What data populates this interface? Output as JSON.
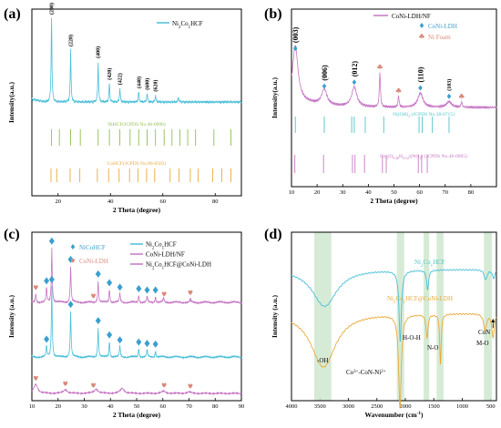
{
  "colors": {
    "blue": "#4bbfd8",
    "pink": "#c777c4",
    "orange": "#e8a93a",
    "green": "#8fbf4b",
    "diamond": "#3a9fd0",
    "heart": "#d9897b",
    "cyan": "#4dc3c9",
    "band": "#cfe8cf"
  },
  "chart_data": [
    {
      "panel": "(a)",
      "type": "line",
      "xlabel": "2 Theta (degree)",
      "ylabel": "Intensity(a.u.)",
      "xlim": [
        10,
        90
      ],
      "xticks": [
        "20",
        "40",
        "60",
        "80"
      ],
      "legend": "Ni2Co1HCF",
      "legend_main": "Ni",
      "legend_sub1": "2",
      "legend_mid": "Co",
      "legend_sub2": "1",
      "legend_tail": "HCF",
      "series_color": "blue",
      "baseline": 0.2,
      "peaks": [
        {
          "x": 17.5,
          "h": 1.0,
          "hkl": "(200)"
        },
        {
          "x": 24.8,
          "h": 0.62,
          "hkl": "(220)"
        },
        {
          "x": 35.3,
          "h": 0.48,
          "hkl": "(400)"
        },
        {
          "x": 39.6,
          "h": 0.22,
          "hkl": "(420)"
        },
        {
          "x": 43.6,
          "h": 0.16,
          "hkl": "(422)"
        },
        {
          "x": 50.8,
          "h": 0.12,
          "hkl": "(440)"
        },
        {
          "x": 54.0,
          "h": 0.1,
          "hkl": "(600)"
        },
        {
          "x": 57.2,
          "h": 0.08,
          "hkl": "(620)"
        },
        {
          "x": 66.0,
          "h": 0.06,
          "hkl": ""
        }
      ],
      "references": [
        {
          "label": "NiHCF(JCPDS No.46-0906)",
          "color": "green",
          "positions": [
            17.5,
            20.5,
            24.8,
            28.5,
            35.3,
            39.6,
            43.6,
            47.5,
            50.8,
            54.0,
            57.2,
            60.5,
            63.5,
            66.5,
            69.5,
            72.5,
            79.5,
            86.0
          ]
        },
        {
          "label": "CoHCF(JCPDS No.86-0502)",
          "color": "orange",
          "positions": [
            17.3,
            19.5,
            24.6,
            28.3,
            35.0,
            39.3,
            43.3,
            47.3,
            50.5,
            53.8,
            56.9,
            62.8,
            66.2,
            70.5,
            73.5,
            79.0,
            82.5,
            86.0
          ]
        }
      ]
    },
    {
      "panel": "(b)",
      "type": "line",
      "xlabel": "2 Theta (degree)",
      "ylabel": "Intensity(a.u.)",
      "xlim": [
        10,
        90
      ],
      "xticks": [
        "10",
        "20",
        "30",
        "40",
        "50",
        "60",
        "70",
        "80"
      ],
      "legend": [
        "CoNi-LDH/NF",
        "CoNi-LDH",
        "Ni Foam"
      ],
      "series_color": "pink",
      "peaks": [
        {
          "x": 11.5,
          "h": 0.95,
          "hkl": "(003)",
          "marker": "diamond"
        },
        {
          "x": 22.8,
          "h": 0.28,
          "hkl": "(006)",
          "marker": "diamond"
        },
        {
          "x": 34.5,
          "h": 0.35,
          "hkl": "(012)",
          "marker": "diamond"
        },
        {
          "x": 44.5,
          "h": 0.62,
          "hkl": "",
          "marker": "heart"
        },
        {
          "x": 51.8,
          "h": 0.2,
          "hkl": "",
          "marker": "heart"
        },
        {
          "x": 60.3,
          "h": 0.25,
          "hkl": "(110)",
          "marker": "diamond"
        },
        {
          "x": 71.5,
          "h": 0.1,
          "hkl": "(103)",
          "marker": "diamond"
        },
        {
          "x": 76.4,
          "h": 0.1,
          "hkl": "",
          "marker": "heart"
        }
      ],
      "references": [
        {
          "label": "Ni(OH)2 (JCPDS No.38-0715)",
          "color": "cyan",
          "positions": [
            11.5,
            22.8,
            33.5,
            34.5,
            38.8,
            46.0,
            59.8,
            61.0,
            65.0,
            71.5
          ]
        },
        {
          "label": "Co6(O0.48H0.52)(NO3) (JCPDS No.46-0605)",
          "color": "pink",
          "positions": [
            11.3,
            22.5,
            33.8,
            34.8,
            38.5,
            45.5,
            47.0,
            59.5,
            60.8,
            63.0
          ]
        }
      ]
    },
    {
      "panel": "(c)",
      "type": "line",
      "xlabel": "2 Theta (degree)",
      "ylabel": "Intensity (a.u.)",
      "xlim": [
        10,
        90
      ],
      "xticks": [
        "10",
        "20",
        "30",
        "40",
        "50",
        "60",
        "70",
        "80",
        "90"
      ],
      "legend_markers": [
        "NiCoHCF",
        "CoNi-LDH"
      ],
      "legend_lines": [
        "Ni2Co1HCF",
        "CoNi-LDH/NF",
        "Ni2Co1HCF@CoNi-LDH"
      ],
      "series": [
        {
          "name": "Ni2Co1HCF@CoNi-LDH",
          "color": "pink",
          "offset": 2,
          "peaks": [
            [
              11.5,
              0.12
            ],
            [
              15.6,
              0.2
            ],
            [
              17.6,
              0.75
            ],
            [
              24.8,
              0.5
            ],
            [
              35.3,
              0.3
            ],
            [
              39.6,
              0.18
            ],
            [
              43.6,
              0.12
            ],
            [
              50.8,
              0.1
            ],
            [
              54.0,
              0.08
            ],
            [
              57.2,
              0.08
            ],
            [
              60.3,
              0.06
            ],
            [
              70.5,
              0.05
            ]
          ]
        },
        {
          "name": "Ni2Co1HCF",
          "color": "blue",
          "offset": 1,
          "peaks": [
            [
              15.6,
              0.15
            ],
            [
              17.6,
              1.0
            ],
            [
              24.8,
              0.65
            ],
            [
              35.3,
              0.42
            ],
            [
              39.6,
              0.22
            ],
            [
              43.6,
              0.15
            ],
            [
              50.8,
              0.12
            ],
            [
              54.0,
              0.1
            ],
            [
              57.2,
              0.09
            ]
          ]
        },
        {
          "name": "CoNi-LDH/NF",
          "color": "pink",
          "offset": 0,
          "peaks": [
            [
              11.5,
              0.25
            ],
            [
              22.8,
              0.1
            ],
            [
              34.5,
              0.12
            ],
            [
              44.5,
              0.14
            ],
            [
              60.3,
              0.06
            ],
            [
              70.0,
              0.04
            ]
          ]
        }
      ],
      "markers": [
        {
          "x": 11.5,
          "row": 2,
          "type": "heart"
        },
        {
          "x": 15.6,
          "row": 2,
          "type": "diamond"
        },
        {
          "x": 17.6,
          "row": 2,
          "type": "diamond"
        },
        {
          "x": 24.8,
          "row": 2,
          "type": "diamond"
        },
        {
          "x": 33.5,
          "row": 2,
          "type": "heart"
        },
        {
          "x": 35.3,
          "row": 2,
          "type": "diamond"
        },
        {
          "x": 39.6,
          "row": 2,
          "type": "diamond"
        },
        {
          "x": 43.6,
          "row": 2,
          "type": "diamond"
        },
        {
          "x": 50.8,
          "row": 2,
          "type": "diamond"
        },
        {
          "x": 54.0,
          "row": 2,
          "type": "diamond"
        },
        {
          "x": 57.2,
          "row": 2,
          "type": "diamond"
        },
        {
          "x": 60.5,
          "row": 2,
          "type": "heart"
        },
        {
          "x": 70.5,
          "row": 2,
          "type": "heart"
        },
        {
          "x": 15.6,
          "row": 1,
          "type": "diamond"
        },
        {
          "x": 17.6,
          "row": 1,
          "type": "diamond"
        },
        {
          "x": 24.8,
          "row": 1,
          "type": "diamond"
        },
        {
          "x": 35.3,
          "row": 1,
          "type": "diamond"
        },
        {
          "x": 39.6,
          "row": 1,
          "type": "diamond"
        },
        {
          "x": 43.6,
          "row": 1,
          "type": "diamond"
        },
        {
          "x": 50.8,
          "row": 1,
          "type": "diamond"
        },
        {
          "x": 54.0,
          "row": 1,
          "type": "diamond"
        },
        {
          "x": 57.2,
          "row": 1,
          "type": "diamond"
        },
        {
          "x": 11.5,
          "row": 0,
          "type": "heart"
        },
        {
          "x": 22.8,
          "row": 0,
          "type": "heart"
        },
        {
          "x": 33.5,
          "row": 0,
          "type": "heart"
        },
        {
          "x": 60.5,
          "row": 0,
          "type": "heart"
        },
        {
          "x": 70.5,
          "row": 0,
          "type": "heart"
        }
      ]
    },
    {
      "panel": "(d)",
      "type": "line",
      "xlabel": "Wavenumber (cm",
      "xlabel_sup": "-1",
      "xlabel_tail": ")",
      "ylabel": "Intensity (a.u.)",
      "xlim": [
        4000,
        400
      ],
      "xticks": [
        "4000",
        "3500",
        "3000",
        "2500",
        "2000",
        "1500",
        "1000",
        "500"
      ],
      "bands": [
        [
          3600,
          3300
        ],
        [
          2150,
          2020
        ],
        [
          1680,
          1580
        ],
        [
          1450,
          1330
        ],
        [
          620,
          480
        ]
      ],
      "series": [
        {
          "name": "Ni2Co1HCF",
          "color": "blue",
          "base": 0.78,
          "dips": [
            [
              3420,
              0.22,
              260
            ],
            [
              2090,
              0.42,
              25
            ],
            [
              1610,
              0.12,
              20
            ],
            [
              590,
              0.06,
              30
            ],
            [
              450,
              0.05,
              25
            ]
          ]
        },
        {
          "name": "Ni2Co1HCF@CoNi-LDH",
          "color": "orange",
          "base": 0.52,
          "dips": [
            [
              3440,
              0.32,
              260
            ],
            [
              2095,
              0.55,
              28
            ],
            [
              1620,
              0.14,
              20
            ],
            [
              1384,
              0.3,
              15
            ],
            [
              600,
              0.1,
              30
            ],
            [
              460,
              0.14,
              25
            ]
          ]
        }
      ],
      "labels": {
        "s1": "Ni2Co1HCF",
        "s2": "Ni2Co1HCF@CoNi-LDH",
        "oh": "-OH",
        "cn_a": "Co",
        "cn_b": "3+",
        "cn_c": "-CoN-Ni",
        "cn_d": "2+",
        "hoh": "H-O-H",
        "no": "N-O",
        "con": "CoN",
        "mo": "M-O"
      }
    }
  ]
}
